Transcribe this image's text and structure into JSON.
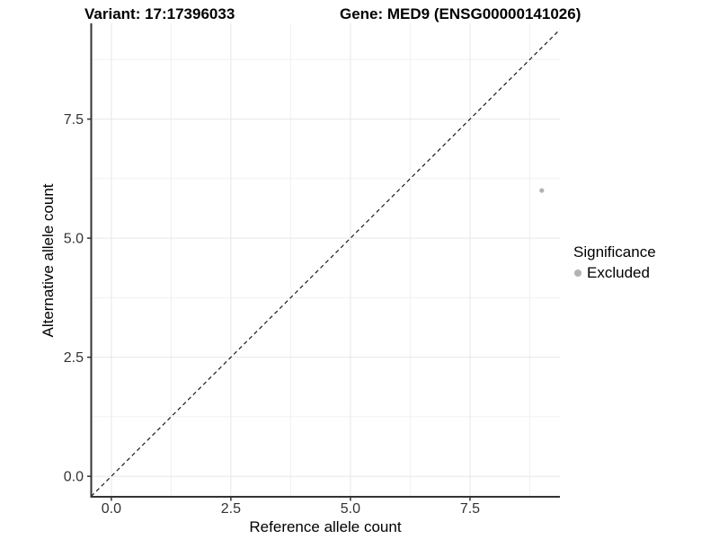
{
  "titles": {
    "variant": "Variant: 17:17396033",
    "gene": "Gene: MED9 (ENSG00000141026)"
  },
  "chart_data": {
    "type": "scatter",
    "title": "Variant: 17:17396033 — Gene: MED9 (ENSG00000141026)",
    "xlabel": "Reference allele count",
    "ylabel": "Alternative allele count",
    "xlim": [
      -0.42,
      9.38
    ],
    "ylim": [
      -0.43,
      9.51
    ],
    "x_ticks": {
      "values": [
        0,
        2.5,
        5,
        7.5
      ],
      "labels": [
        "0.0",
        "2.5",
        "5.0",
        "7.5"
      ]
    },
    "y_ticks": {
      "values": [
        0,
        2.5,
        5,
        7.5
      ],
      "labels": [
        "0.0",
        "2.5",
        "5.0",
        "7.5"
      ]
    },
    "x_minor_gridlines": [
      1.25,
      3.75,
      6.25,
      8.75
    ],
    "y_minor_gridlines": [
      1.25,
      3.75,
      6.25,
      8.75
    ],
    "grid": "major-and-minor",
    "reference_line": {
      "slope": 1,
      "intercept": 0,
      "style": "dashed",
      "color": "#1a1a1a"
    },
    "series": [
      {
        "name": "Excluded",
        "color": "#b3b3b3",
        "points": [
          {
            "x": 9,
            "y": 6
          }
        ]
      }
    ],
    "legend": {
      "title": "Significance",
      "position": "right",
      "items": [
        {
          "label": "Excluded",
          "color": "#b3b3b3"
        }
      ]
    }
  },
  "colors": {
    "background": "#ffffff",
    "grid_major": "#e7e7e7",
    "grid_minor": "#f1f1f1",
    "axis_line": "#333333",
    "tick_text": "#333333",
    "title_text": "#000000"
  }
}
